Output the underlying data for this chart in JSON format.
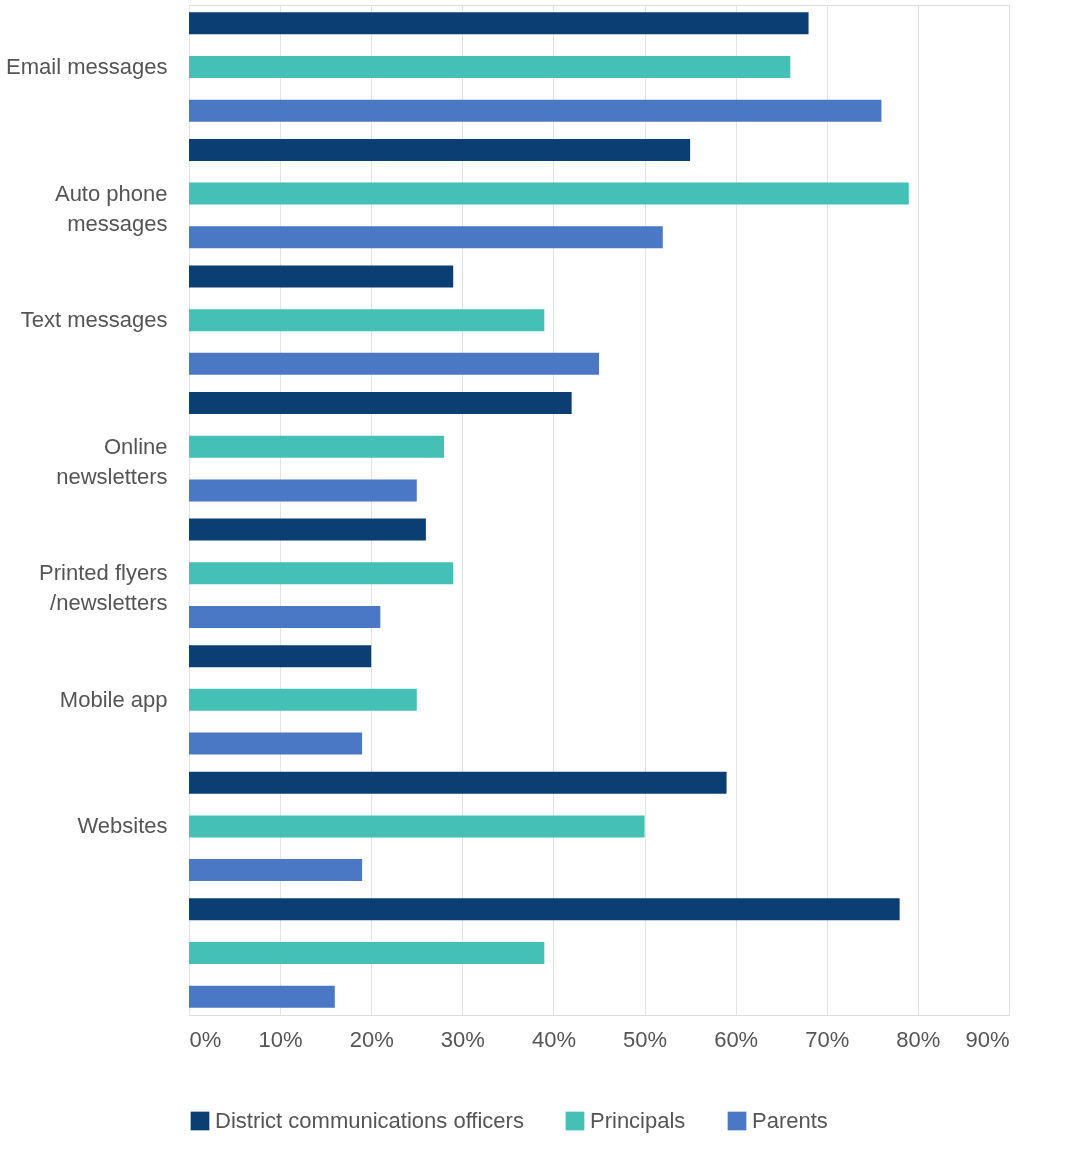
{
  "chart_data": {
    "type": "bar",
    "orientation": "horizontal",
    "categories": [
      "Email messages",
      "Auto phone\nmessages",
      "Text messages",
      "Online\nnewsletters",
      "Printed flyers\n/newsletters",
      "Mobile app",
      "Websites",
      null
    ],
    "series": [
      {
        "name": "District communications officers",
        "color": "#0b3f73",
        "values": [
          68,
          55,
          29,
          42,
          26,
          20,
          59,
          78
        ]
      },
      {
        "name": "Principals",
        "color": "#45c0b6",
        "values": [
          66,
          79,
          39,
          28,
          29,
          25,
          50,
          39
        ]
      },
      {
        "name": "Parents",
        "color": "#4a78c4",
        "values": [
          76,
          52,
          45,
          25,
          21,
          19,
          19,
          16
        ]
      }
    ],
    "xlim": [
      0,
      90
    ],
    "xticks": [
      {
        "value": 0,
        "label": "0%"
      },
      {
        "value": 10,
        "label": "10%"
      },
      {
        "value": 20,
        "label": "20%"
      },
      {
        "value": 30,
        "label": "30%"
      },
      {
        "value": 40,
        "label": "40%"
      },
      {
        "value": 50,
        "label": "50%"
      },
      {
        "value": 60,
        "label": "60%"
      },
      {
        "value": 70,
        "label": "70%"
      },
      {
        "value": 80,
        "label": "80%"
      },
      {
        "value": 90,
        "label": "90%"
      }
    ],
    "grid": "x",
    "legend": "bottom"
  }
}
